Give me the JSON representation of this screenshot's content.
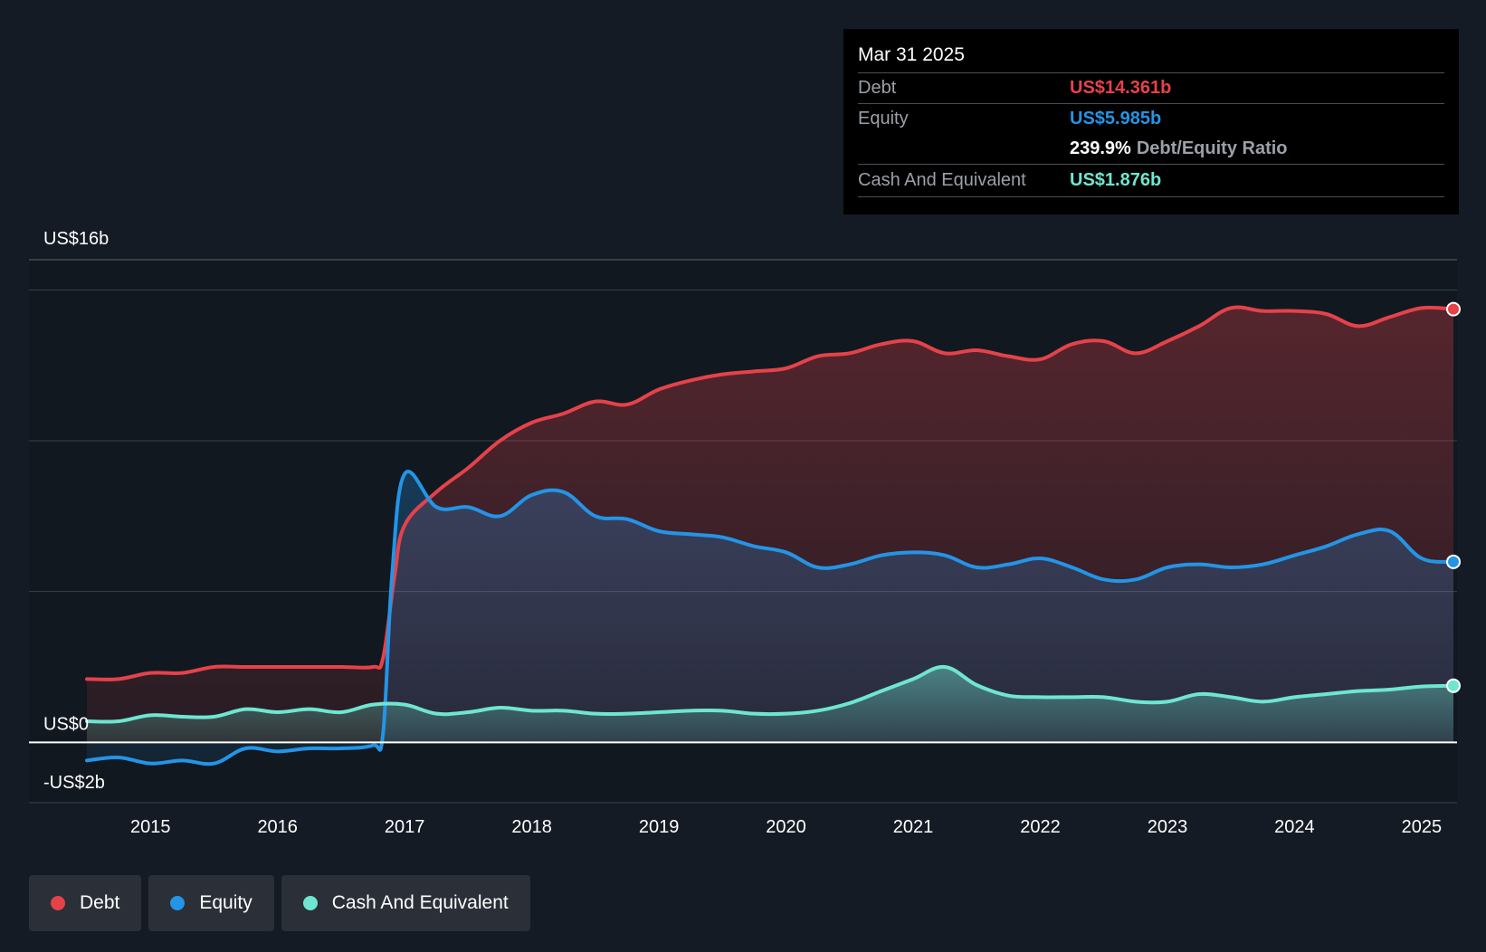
{
  "tooltip": {
    "date": "Mar 31 2025",
    "debt_label": "Debt",
    "debt_value": "US$14.361b",
    "equity_label": "Equity",
    "equity_value": "US$5.985b",
    "ratio_value": "239.9%",
    "ratio_label": "Debt/Equity Ratio",
    "cash_label": "Cash And Equivalent",
    "cash_value": "US$1.876b"
  },
  "legend": {
    "debt": "Debt",
    "equity": "Equity",
    "cash": "Cash And Equivalent"
  },
  "colors": {
    "debt": "#e5424a",
    "equity": "#2494e6",
    "cash": "#6ee6d0",
    "background": "#151b24"
  },
  "chart_data": {
    "type": "area",
    "title": "",
    "xlabel": "",
    "ylabel": "",
    "ylim": [
      -2,
      16
    ],
    "xlim": [
      2014.5,
      2025.25
    ],
    "y_axis_labels": [
      "US$16b",
      "US$0",
      "-US$2b"
    ],
    "x_tick_labels": [
      "2015",
      "2016",
      "2017",
      "2018",
      "2019",
      "2020",
      "2021",
      "2022",
      "2023",
      "2024",
      "2025"
    ],
    "x_ticks": [
      2015,
      2016,
      2017,
      2018,
      2019,
      2020,
      2021,
      2022,
      2023,
      2024,
      2025
    ],
    "series": [
      {
        "name": "Debt",
        "points": [
          [
            2014.5,
            2.1
          ],
          [
            2014.75,
            2.1
          ],
          [
            2015.0,
            2.3
          ],
          [
            2015.25,
            2.3
          ],
          [
            2015.5,
            2.5
          ],
          [
            2015.75,
            2.5
          ],
          [
            2016.0,
            2.5
          ],
          [
            2016.25,
            2.5
          ],
          [
            2016.5,
            2.5
          ],
          [
            2016.75,
            2.5
          ],
          [
            2016.83,
            2.8
          ],
          [
            2016.92,
            5.5
          ],
          [
            2017.0,
            7.2
          ],
          [
            2017.25,
            8.3
          ],
          [
            2017.5,
            9.1
          ],
          [
            2017.75,
            10.0
          ],
          [
            2018.0,
            10.6
          ],
          [
            2018.25,
            10.9
          ],
          [
            2018.5,
            11.3
          ],
          [
            2018.75,
            11.2
          ],
          [
            2019.0,
            11.7
          ],
          [
            2019.25,
            12.0
          ],
          [
            2019.5,
            12.2
          ],
          [
            2019.75,
            12.3
          ],
          [
            2020.0,
            12.4
          ],
          [
            2020.25,
            12.8
          ],
          [
            2020.5,
            12.9
          ],
          [
            2020.75,
            13.2
          ],
          [
            2021.0,
            13.3
          ],
          [
            2021.25,
            12.9
          ],
          [
            2021.5,
            13.0
          ],
          [
            2021.75,
            12.8
          ],
          [
            2022.0,
            12.7
          ],
          [
            2022.25,
            13.2
          ],
          [
            2022.5,
            13.3
          ],
          [
            2022.75,
            12.9
          ],
          [
            2023.0,
            13.3
          ],
          [
            2023.25,
            13.8
          ],
          [
            2023.5,
            14.4
          ],
          [
            2023.75,
            14.3
          ],
          [
            2024.0,
            14.3
          ],
          [
            2024.25,
            14.2
          ],
          [
            2024.5,
            13.8
          ],
          [
            2024.75,
            14.1
          ],
          [
            2025.0,
            14.4
          ],
          [
            2025.25,
            14.361
          ]
        ]
      },
      {
        "name": "Equity",
        "points": [
          [
            2014.5,
            -0.6
          ],
          [
            2014.75,
            -0.5
          ],
          [
            2015.0,
            -0.7
          ],
          [
            2015.25,
            -0.6
          ],
          [
            2015.5,
            -0.7
          ],
          [
            2015.75,
            -0.2
          ],
          [
            2016.0,
            -0.3
          ],
          [
            2016.25,
            -0.2
          ],
          [
            2016.5,
            -0.2
          ],
          [
            2016.75,
            -0.1
          ],
          [
            2016.83,
            0.3
          ],
          [
            2016.9,
            5.5
          ],
          [
            2017.0,
            8.9
          ],
          [
            2017.25,
            7.8
          ],
          [
            2017.5,
            7.8
          ],
          [
            2017.75,
            7.5
          ],
          [
            2018.0,
            8.2
          ],
          [
            2018.25,
            8.3
          ],
          [
            2018.5,
            7.5
          ],
          [
            2018.75,
            7.4
          ],
          [
            2019.0,
            7.0
          ],
          [
            2019.25,
            6.9
          ],
          [
            2019.5,
            6.8
          ],
          [
            2019.75,
            6.5
          ],
          [
            2020.0,
            6.3
          ],
          [
            2020.25,
            5.8
          ],
          [
            2020.5,
            5.9
          ],
          [
            2020.75,
            6.2
          ],
          [
            2021.0,
            6.3
          ],
          [
            2021.25,
            6.2
          ],
          [
            2021.5,
            5.8
          ],
          [
            2021.75,
            5.9
          ],
          [
            2022.0,
            6.1
          ],
          [
            2022.25,
            5.8
          ],
          [
            2022.5,
            5.4
          ],
          [
            2022.75,
            5.4
          ],
          [
            2023.0,
            5.8
          ],
          [
            2023.25,
            5.9
          ],
          [
            2023.5,
            5.8
          ],
          [
            2023.75,
            5.9
          ],
          [
            2024.0,
            6.2
          ],
          [
            2024.25,
            6.5
          ],
          [
            2024.5,
            6.9
          ],
          [
            2024.75,
            7.0
          ],
          [
            2025.0,
            6.1
          ],
          [
            2025.25,
            5.985
          ]
        ]
      },
      {
        "name": "Cash And Equivalent",
        "points": [
          [
            2014.5,
            0.7
          ],
          [
            2014.75,
            0.7
          ],
          [
            2015.0,
            0.9
          ],
          [
            2015.25,
            0.85
          ],
          [
            2015.5,
            0.85
          ],
          [
            2015.75,
            1.1
          ],
          [
            2016.0,
            1.0
          ],
          [
            2016.25,
            1.1
          ],
          [
            2016.5,
            1.0
          ],
          [
            2016.75,
            1.25
          ],
          [
            2017.0,
            1.25
          ],
          [
            2017.25,
            0.95
          ],
          [
            2017.5,
            1.0
          ],
          [
            2017.75,
            1.15
          ],
          [
            2018.0,
            1.05
          ],
          [
            2018.25,
            1.05
          ],
          [
            2018.5,
            0.95
          ],
          [
            2018.75,
            0.95
          ],
          [
            2019.0,
            1.0
          ],
          [
            2019.25,
            1.05
          ],
          [
            2019.5,
            1.05
          ],
          [
            2019.75,
            0.95
          ],
          [
            2020.0,
            0.95
          ],
          [
            2020.25,
            1.05
          ],
          [
            2020.5,
            1.3
          ],
          [
            2020.75,
            1.7
          ],
          [
            2021.0,
            2.1
          ],
          [
            2021.25,
            2.5
          ],
          [
            2021.5,
            1.9
          ],
          [
            2021.75,
            1.55
          ],
          [
            2022.0,
            1.5
          ],
          [
            2022.25,
            1.5
          ],
          [
            2022.5,
            1.5
          ],
          [
            2022.75,
            1.35
          ],
          [
            2023.0,
            1.35
          ],
          [
            2023.25,
            1.6
          ],
          [
            2023.5,
            1.5
          ],
          [
            2023.75,
            1.35
          ],
          [
            2024.0,
            1.5
          ],
          [
            2024.25,
            1.6
          ],
          [
            2024.5,
            1.7
          ],
          [
            2024.75,
            1.75
          ],
          [
            2025.0,
            1.85
          ],
          [
            2025.25,
            1.876
          ]
        ]
      }
    ],
    "legend_position": "bottom-left"
  }
}
